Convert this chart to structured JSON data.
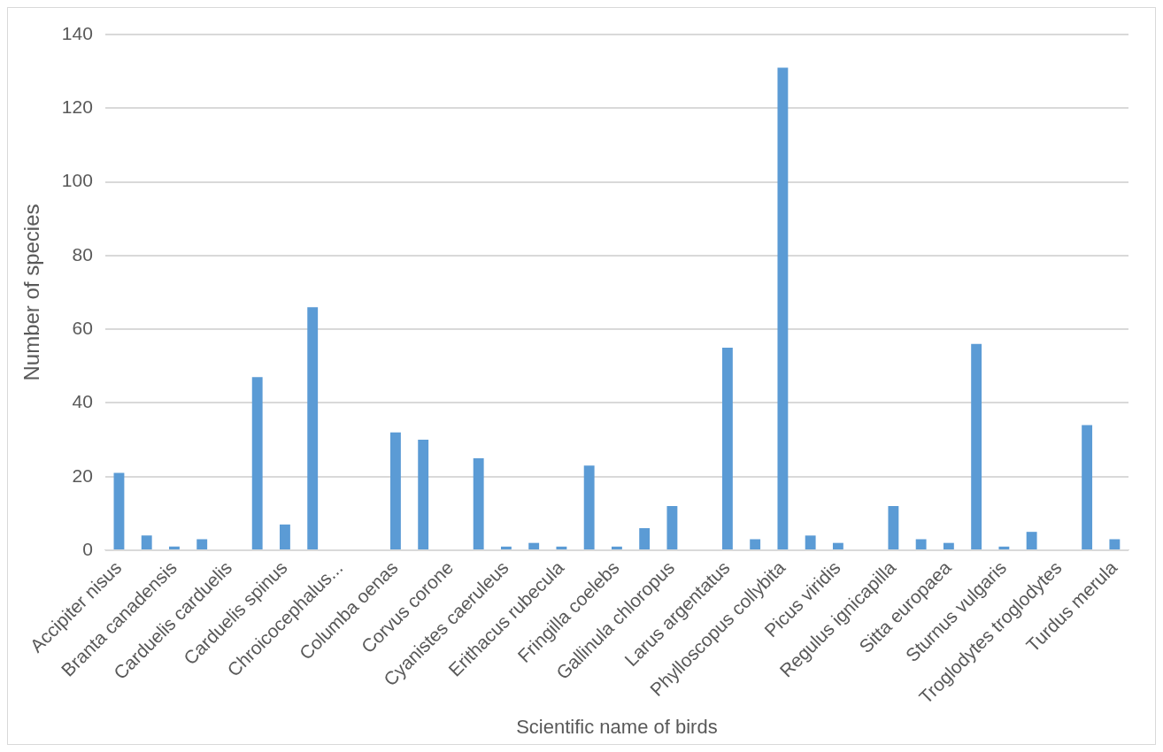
{
  "chart_data": {
    "type": "bar",
    "xlabel": "Scientific name of birds",
    "ylabel": "Number of species",
    "categories": [
      "Accipiter nisus",
      null,
      "Branta canadensis",
      null,
      "Carduelis carduelis",
      null,
      "Carduelis spinus",
      null,
      "Chroicocephalus...",
      null,
      "Columba oenas",
      null,
      "Corvus corone",
      null,
      "Cyanistes caeruleus",
      null,
      "Erithacus rubecula",
      null,
      "Fringilla coelebs",
      null,
      "Gallinula chloropus",
      null,
      "Larus argentatus",
      null,
      "Phylloscopus collybita",
      null,
      "Picus viridis",
      null,
      "Regulus ignicapilla",
      null,
      "Sitta europaea",
      null,
      "Sturnus vulgaris",
      null,
      "Troglodytes troglodytes",
      null,
      "Turdus merula"
    ],
    "values": [
      21,
      4,
      1,
      3,
      0,
      47,
      7,
      66,
      0,
      0,
      32,
      30,
      0,
      25,
      1,
      2,
      1,
      23,
      1,
      6,
      12,
      0,
      55,
      3,
      131,
      4,
      2,
      0,
      12,
      3,
      2,
      56,
      1,
      5,
      0,
      34,
      3
    ],
    "color": "#5b9bd5",
    "ylim": [
      0,
      140
    ],
    "yticks": [
      0,
      20,
      40,
      60,
      80,
      100,
      120,
      140
    ],
    "grid": "y",
    "legend": false
  }
}
